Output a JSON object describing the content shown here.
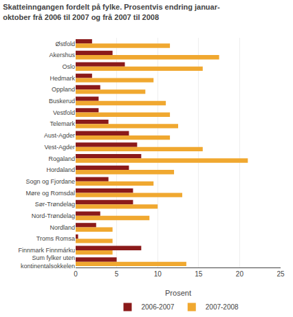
{
  "chart_data": {
    "type": "bar",
    "orientation": "horizontal",
    "title": "Skatteinngangen fordelt på fylke. Prosentvis endring januar-\noktober frå 2006 til 2007 og frå 2007 til 2008",
    "categories": [
      "Østfold",
      "Akershus",
      "Oslo",
      "Hedmark",
      "Oppland",
      "Buskerud",
      "Vestfold",
      "Telemark",
      "Aust-Agder",
      "Vest-Agder",
      "Rogaland",
      "Hordaland",
      "Sogn og Fjordane",
      "Møre og Romsdal",
      "Sør-Trøndelag",
      "Nord-Trøndelag",
      "Nordland",
      "Troms Romsa",
      "Finnmark Finnmárku",
      "Sum fylker uten\nkontinentalsokkelen"
    ],
    "series": [
      {
        "name": "2006-2007",
        "color": "#8B1A1A",
        "values": [
          2.0,
          4.5,
          6.0,
          2.0,
          3.0,
          2.8,
          2.8,
          4.0,
          6.5,
          7.5,
          8.0,
          6.5,
          4.0,
          7.0,
          7.0,
          3.0,
          2.5,
          0.3,
          8.0,
          5.0
        ]
      },
      {
        "name": "2007-2008",
        "color": "#F0A830",
        "values": [
          11.5,
          17.5,
          15.5,
          9.5,
          8.5,
          11.0,
          11.5,
          12.5,
          11.5,
          15.5,
          21.0,
          12.0,
          9.5,
          13.0,
          10.0,
          9.0,
          4.5,
          4.5,
          4.5,
          13.5
        ]
      }
    ],
    "xlabel": "Prosent",
    "xlim": [
      0,
      25
    ],
    "xticks": [
      0,
      5,
      10,
      15,
      20,
      25
    ],
    "grid": true,
    "legend": "bottom"
  }
}
